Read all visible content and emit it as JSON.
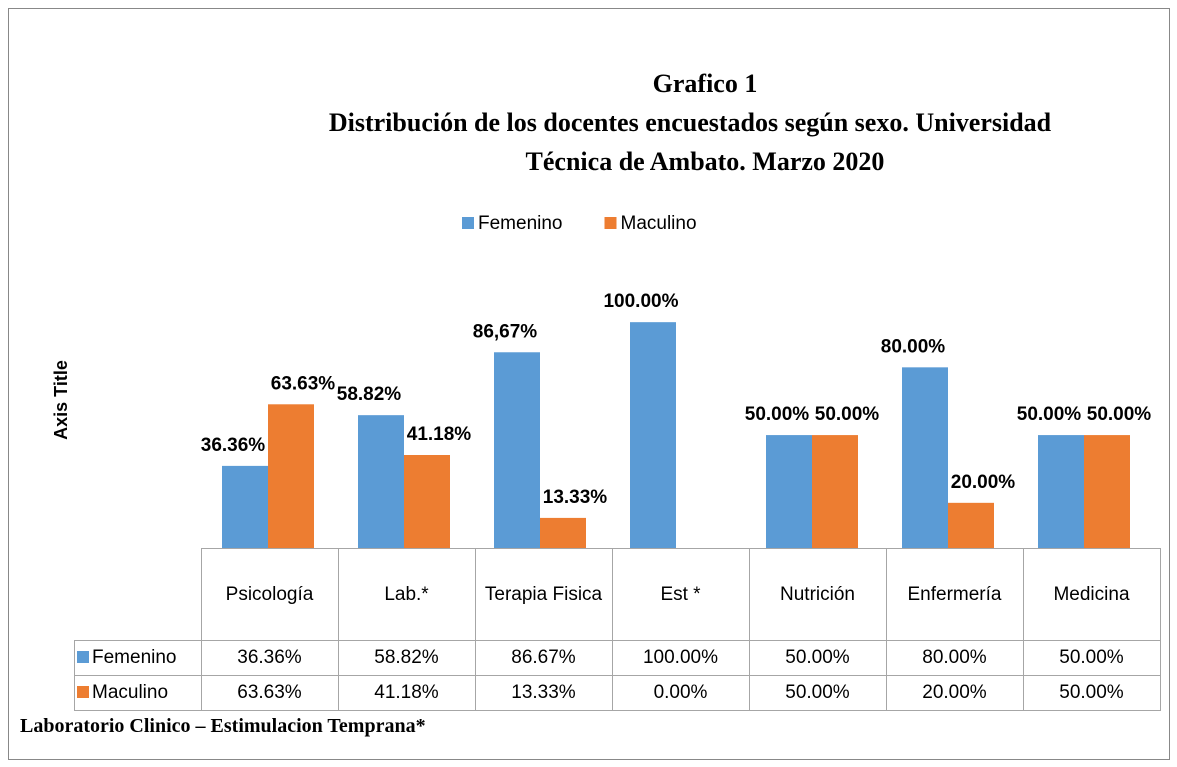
{
  "chart_data": {
    "type": "bar",
    "title": "Grafico 1",
    "subtitle": [
      "Distribución de los docentes encuestados según sexo. Universidad",
      "Técnica de Ambato. Marzo 2020"
    ],
    "y_axis_title": "Axis Title",
    "footnote": "Laboratorio Clinico – Estimulacion Temprana*",
    "categories": [
      "Psicología",
      "Lab.*",
      "Terapia Fisica",
      "Est *",
      "Nutrición",
      "Enfermería",
      "Medicina"
    ],
    "series": [
      {
        "name": "Femenino",
        "color": "#5b9bd5",
        "values": [
          36.36,
          58.82,
          86.67,
          100,
          50,
          80,
          50
        ],
        "value_labels": [
          "36.36%",
          "58.82%",
          "86,67%",
          "100.00%",
          "50.00%",
          "80.00%",
          "50.00%"
        ],
        "table_labels": [
          "36.36%",
          "58.82%",
          "86.67%",
          "100.00%",
          "50.00%",
          "80.00%",
          "50.00%"
        ]
      },
      {
        "name": "Maculino",
        "color": "#ed7d31",
        "values": [
          63.63,
          41.18,
          13.33,
          0,
          50,
          20,
          50
        ],
        "value_labels": [
          "63.63%",
          "41.18%",
          "13.33%",
          null,
          "50.00%",
          "20.00%",
          "50.00%"
        ],
        "table_labels": [
          "63.63%",
          "41.18%",
          "13.33%",
          "0.00%",
          "50.00%",
          "20.00%",
          "50.00%"
        ]
      }
    ],
    "ylim": [
      0,
      120
    ],
    "legend": "top"
  }
}
